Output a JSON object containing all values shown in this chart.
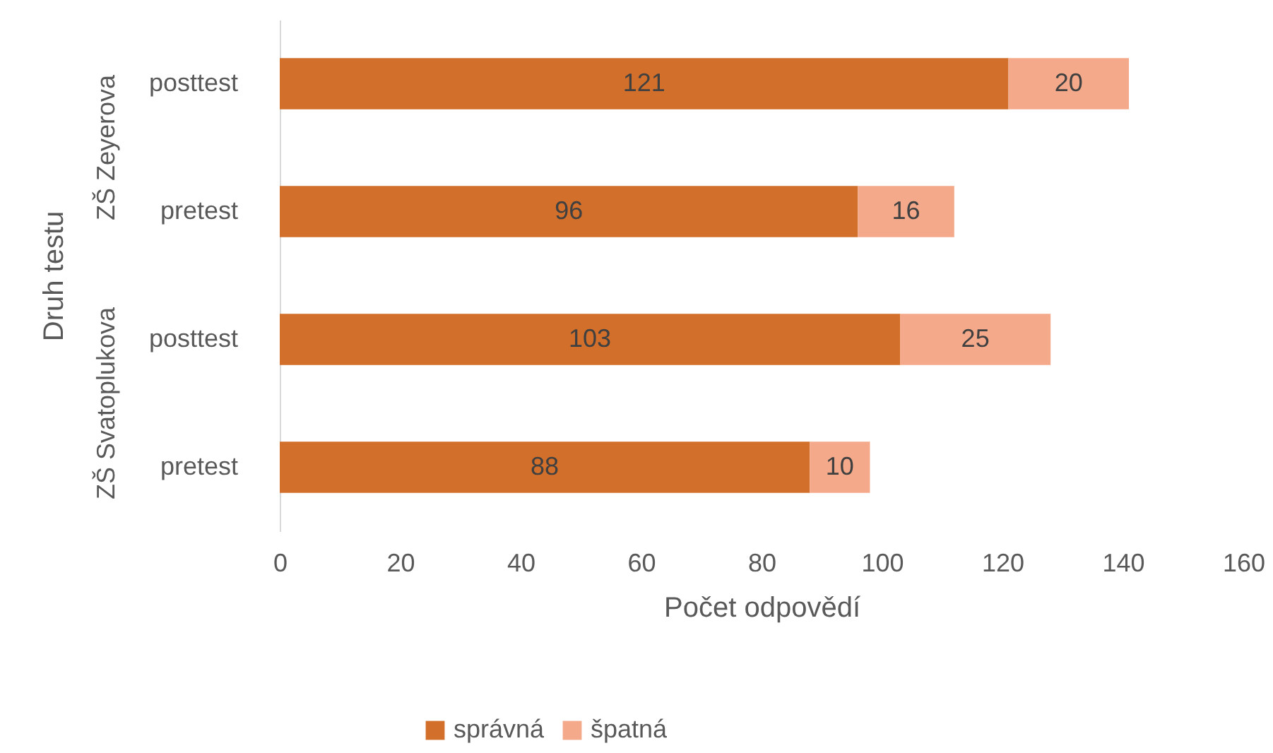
{
  "chart_data": {
    "type": "bar",
    "orientation": "horizontal",
    "stacked": true,
    "xlabel": "Počet odpovědí",
    "ylabel": "Druh testu",
    "categories": [
      "posttest",
      "pretest",
      "posttest",
      "pretest"
    ],
    "series": [
      {
        "name": "správná",
        "color": "#d26f2b",
        "values": [
          121,
          96,
          103,
          88
        ]
      },
      {
        "name": "špatná",
        "color": "#f4aa8a",
        "values": [
          20,
          16,
          25,
          10
        ]
      }
    ],
    "xlim": [
      0,
      160
    ],
    "xticks": [
      0,
      20,
      40,
      60,
      80,
      100,
      120,
      140,
      160
    ],
    "data_labels": true,
    "legend": "bottom",
    "annotations": [
      "ZŠ Zeyerova",
      "ZŠ Svatoplukova"
    ]
  }
}
